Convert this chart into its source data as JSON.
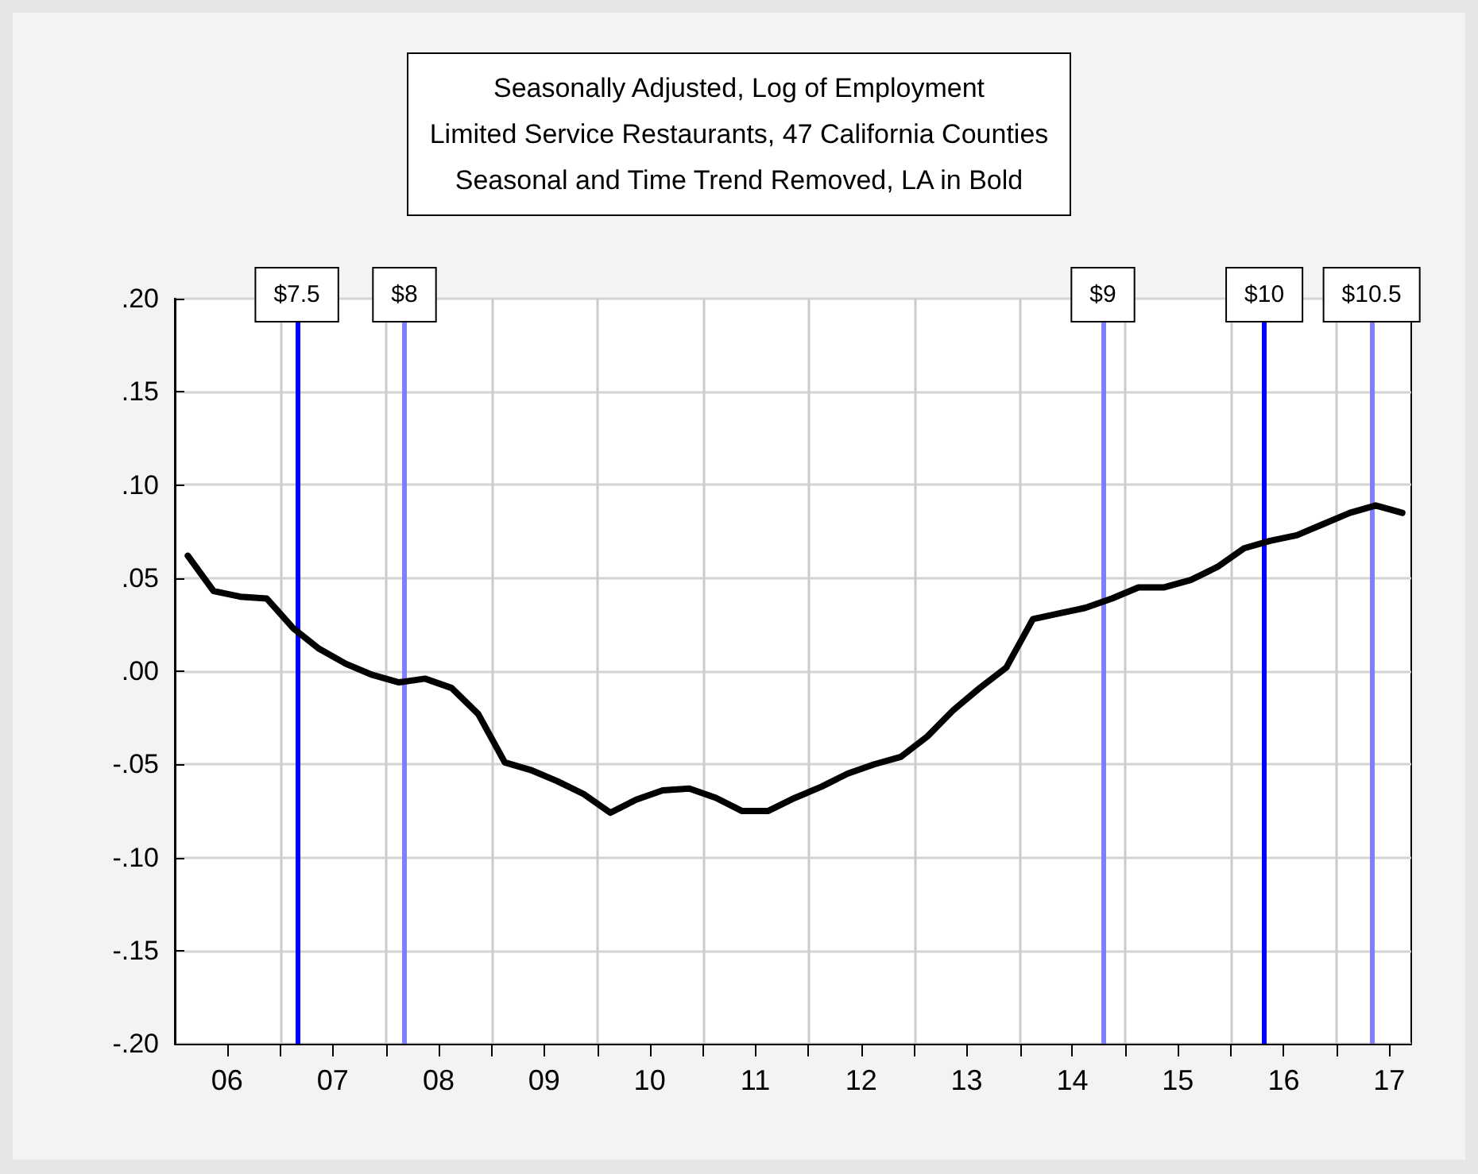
{
  "chart_data": {
    "type": "line",
    "title": "Seasonally Adjusted, Log of Employment\nLimited Service Restaurants, 47 California Counties\nSeasonal and Time Trend Removed, LA in Bold",
    "x": [
      "2006-02-15",
      "2006-05-15",
      "2006-08-15",
      "2006-11-15",
      "2007-02-15",
      "2007-05-15",
      "2007-08-15",
      "2007-11-15",
      "2008-02-15",
      "2008-05-15",
      "2008-08-15",
      "2008-11-15",
      "2009-02-15",
      "2009-05-15",
      "2009-08-15",
      "2009-11-15",
      "2010-02-15",
      "2010-05-15",
      "2010-08-15",
      "2010-11-15",
      "2011-02-15",
      "2011-05-15",
      "2011-08-15",
      "2011-11-15",
      "2012-02-15",
      "2012-05-15",
      "2012-08-15",
      "2012-11-15",
      "2013-02-15",
      "2013-05-15",
      "2013-08-15",
      "2013-11-15",
      "2014-02-15",
      "2014-05-15",
      "2014-08-15",
      "2014-11-15",
      "2015-02-15",
      "2015-05-15",
      "2015-08-15",
      "2015-11-15",
      "2016-02-15",
      "2016-05-15",
      "2016-08-15",
      "2016-11-15",
      "2017-02-15",
      "2017-05-15",
      "2017-08-15"
    ],
    "series": [
      {
        "color": "#000000",
        "values": [
          0.062,
          0.043,
          0.04,
          0.039,
          0.023,
          0.012,
          0.004,
          -0.002,
          -0.006,
          -0.004,
          -0.009,
          -0.023,
          -0.049,
          -0.053,
          -0.059,
          -0.066,
          -0.076,
          -0.069,
          -0.064,
          -0.063,
          -0.068,
          -0.075,
          -0.075,
          -0.068,
          -0.062,
          -0.055,
          -0.05,
          -0.046,
          -0.035,
          -0.021,
          -0.009,
          0.002,
          0.028,
          0.031,
          0.034,
          0.039,
          0.045,
          0.045,
          0.049,
          0.056,
          0.066,
          0.07,
          0.073,
          0.079,
          0.085,
          0.089,
          0.085
        ]
      }
    ],
    "xlim": [
      "2006-01-01",
      "2017-09-15"
    ],
    "xticks": [
      {
        "value": "2006-07-01",
        "label": "06"
      },
      {
        "value": "2007-01-01",
        "label": null
      },
      {
        "value": "2007-07-01",
        "label": "07"
      },
      {
        "value": "2008-01-01",
        "label": null
      },
      {
        "value": "2008-07-01",
        "label": "08"
      },
      {
        "value": "2009-01-01",
        "label": null
      },
      {
        "value": "2009-07-01",
        "label": "09"
      },
      {
        "value": "2010-01-01",
        "label": null
      },
      {
        "value": "2010-07-01",
        "label": "10"
      },
      {
        "value": "2011-01-01",
        "label": null
      },
      {
        "value": "2011-07-01",
        "label": "11"
      },
      {
        "value": "2012-01-01",
        "label": null
      },
      {
        "value": "2012-07-01",
        "label": "12"
      },
      {
        "value": "2013-01-01",
        "label": null
      },
      {
        "value": "2013-07-01",
        "label": "13"
      },
      {
        "value": "2014-01-01",
        "label": null
      },
      {
        "value": "2014-07-01",
        "label": "14"
      },
      {
        "value": "2015-01-01",
        "label": null
      },
      {
        "value": "2015-07-01",
        "label": "15"
      },
      {
        "value": "2016-01-01",
        "label": null
      },
      {
        "value": "2016-07-01",
        "label": "16"
      },
      {
        "value": "2017-01-01",
        "label": null
      },
      {
        "value": "2017-07-01",
        "label": "17"
      }
    ],
    "ylim": [
      -0.2,
      0.2
    ],
    "yticks": [
      {
        "value": -0.2,
        "label": "-.20"
      },
      {
        "value": -0.15,
        "label": "-.15"
      },
      {
        "value": -0.1,
        "label": "-.10"
      },
      {
        "value": -0.05,
        "label": "-.05"
      },
      {
        "value": 0,
        "label": ".00"
      },
      {
        "value": 0.05,
        "label": ".05"
      },
      {
        "value": 0.1,
        "label": ".10"
      },
      {
        "value": 0.15,
        "label": ".15"
      },
      {
        "value": 0.2,
        "label": ".20"
      }
    ],
    "ref_lines": [
      {
        "axis": "x",
        "value": "2007-02-27",
        "label": "$7.5",
        "color": "#0000ff"
      },
      {
        "axis": "x",
        "value": "2008-03-05",
        "label": "$8",
        "color": "#8080ff"
      },
      {
        "axis": "x",
        "value": "2014-10-15",
        "label": "$9",
        "color": "#8080ff"
      },
      {
        "axis": "x",
        "value": "2016-04-25",
        "label": "$10",
        "color": "#0000ff"
      },
      {
        "axis": "x",
        "value": "2017-05-01",
        "label": "$10.5",
        "color": "#8080ff"
      }
    ],
    "grid": true
  }
}
